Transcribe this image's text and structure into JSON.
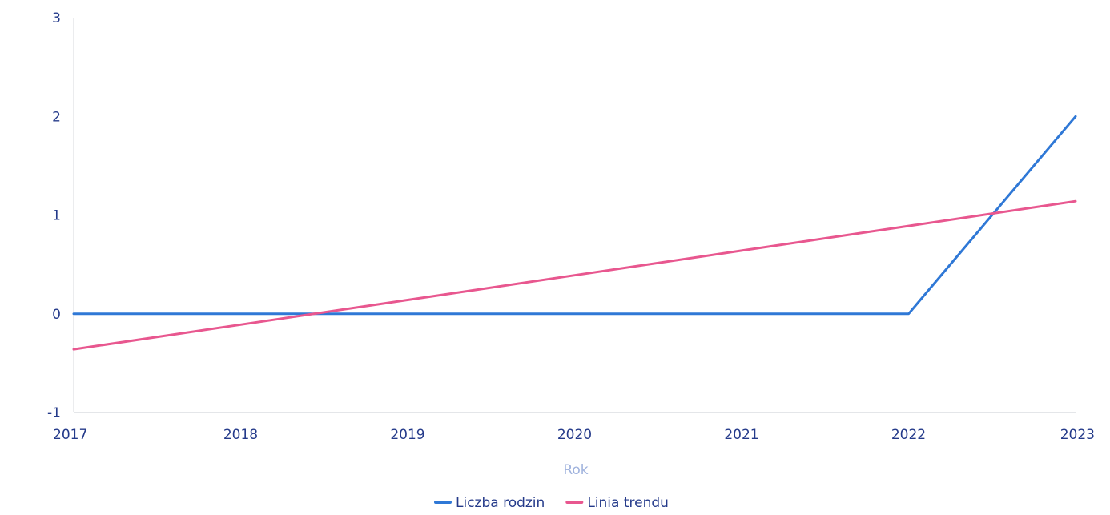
{
  "chart_data": {
    "type": "line",
    "title": "",
    "xlabel": "Rok",
    "ylabel": "",
    "x": [
      2017,
      2018,
      2019,
      2020,
      2021,
      2022,
      2023
    ],
    "ylim": [
      -1,
      3
    ],
    "yticks": [
      -1,
      0,
      1,
      2,
      3
    ],
    "grid": false,
    "legend_position": "bottom-center",
    "series": [
      {
        "name": "Liczba rodzin",
        "color": "#2f78d6",
        "values": [
          0,
          0,
          0,
          0,
          0,
          0,
          2
        ]
      },
      {
        "name": "Linia trendu",
        "color": "#e8578f",
        "values": [
          -0.36,
          -0.11,
          0.14,
          0.39,
          0.64,
          0.89,
          1.14
        ]
      }
    ]
  }
}
